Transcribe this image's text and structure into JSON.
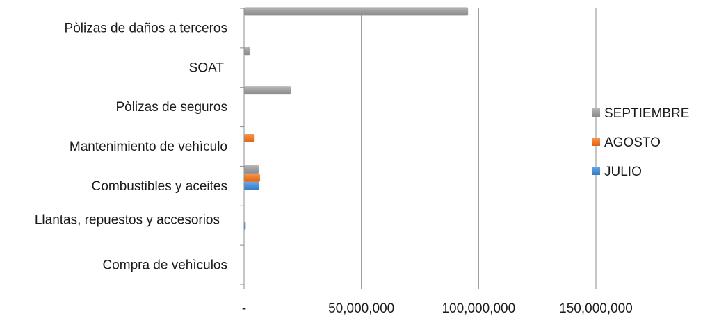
{
  "chart_data": {
    "type": "bar",
    "orientation": "horizontal",
    "categories": [
      "Compra de vehìculos",
      "Llantas, repuestos y accesorios",
      "Combustibles y aceites",
      "Mantenimiento de vehìculo",
      "Pòlizas de seguros",
      "SOAT",
      "Pòlizas de daños a terceros"
    ],
    "series": [
      {
        "name": "JULIO",
        "color": "#4a90d9",
        "values": [
          0,
          700000,
          6500000,
          0,
          0,
          0,
          0
        ]
      },
      {
        "name": "AGOSTO",
        "color": "#f07a2a",
        "values": [
          0,
          0,
          6800000,
          4500000,
          0,
          0,
          0
        ]
      },
      {
        "name": "SEPTIEMBRE",
        "color": "#9e9e9e",
        "values": [
          0,
          0,
          6300000,
          0,
          20000000,
          2500000,
          95500000
        ]
      }
    ],
    "x_ticks": [
      "-",
      "50,000,000",
      "100,000,000",
      "150,000,000"
    ],
    "x_tick_values": [
      0,
      50000000,
      100000000,
      150000000
    ],
    "xlim": [
      0,
      150000000
    ],
    "grid": true,
    "legend_position": "right",
    "legend_order": [
      "SEPTIEMBRE",
      "AGOSTO",
      "JULIO"
    ]
  }
}
